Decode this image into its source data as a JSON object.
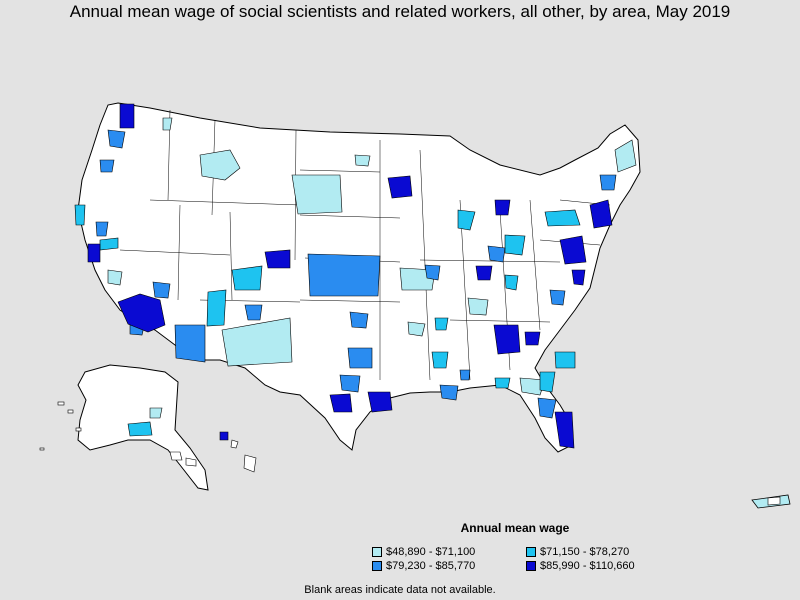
{
  "title": "Annual mean wage of social scientists and related workers, all other, by area, May 2019",
  "legend": {
    "title": "Annual mean wage",
    "items": [
      {
        "label": "$48,890 - $71,100",
        "color": "#b2ebf2"
      },
      {
        "label": "$71,150 - $78,270",
        "color": "#1ec3f0"
      },
      {
        "label": "$79,230 - $85,770",
        "color": "#2a8cf0"
      },
      {
        "label": "$85,990 - $110,660",
        "color": "#0a0ad2"
      }
    ]
  },
  "note": "Blank areas indicate data not available.",
  "colors": {
    "background": "#e3e3e3",
    "land": "#ffffff",
    "border": "#000000"
  }
}
